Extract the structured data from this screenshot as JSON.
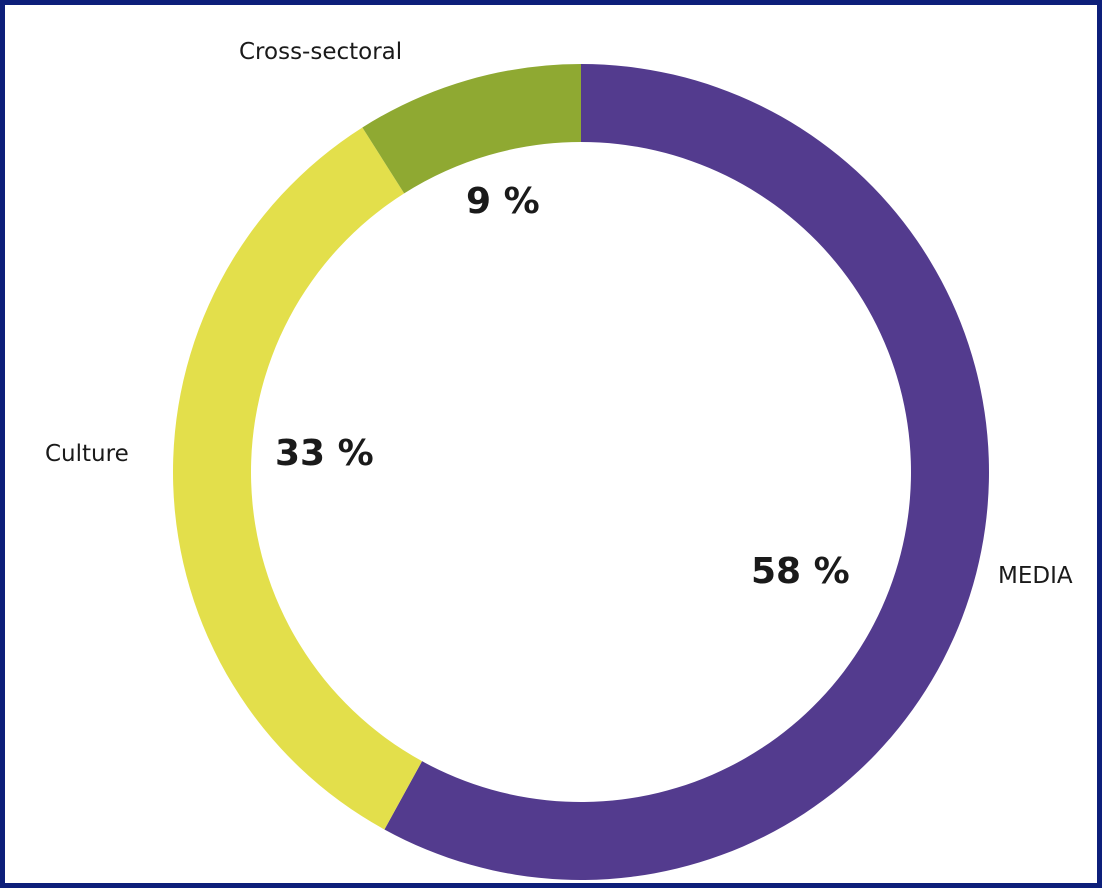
{
  "chart_data": {
    "type": "pie",
    "donut": true,
    "title": "",
    "slices": [
      {
        "label": "MEDIA",
        "value": 58,
        "value_label": "58 %",
        "color": "#533b8e"
      },
      {
        "label": "Culture",
        "value": 33,
        "value_label": "33 %",
        "color": "#e3df4b"
      },
      {
        "label": "Cross-sectoral",
        "value": 9,
        "value_label": "9 %",
        "color": "#8fa932"
      }
    ],
    "start": "12 o'clock",
    "direction": "clockwise"
  },
  "frame": {
    "border_color": "#0d1f7a"
  }
}
